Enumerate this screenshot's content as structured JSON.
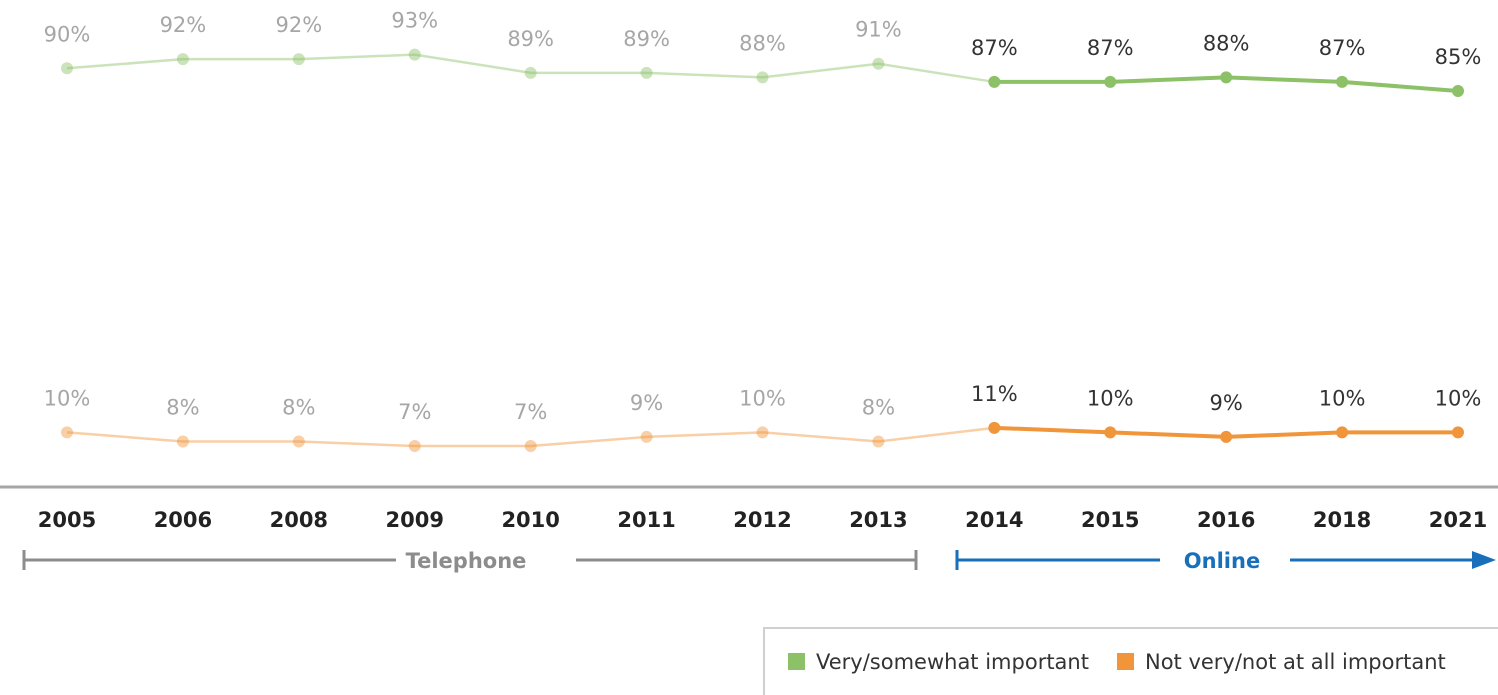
{
  "chart_data": {
    "type": "line",
    "categories": [
      "2005",
      "2006",
      "2008",
      "2009",
      "2010",
      "2011",
      "2012",
      "2013",
      "2014",
      "2015",
      "2016",
      "2018",
      "2021"
    ],
    "series": [
      {
        "name": "Very/somewhat important",
        "color": "#8cc168",
        "values": [
          90,
          92,
          92,
          93,
          89,
          89,
          88,
          91,
          87,
          87,
          88,
          87,
          85
        ],
        "value_labels": [
          "90%",
          "92%",
          "92%",
          "93%",
          "89%",
          "89%",
          "88%",
          "91%",
          "87%",
          "87%",
          "88%",
          "87%",
          "85%"
        ]
      },
      {
        "name": "Not very/not at all important",
        "color": "#f0953a",
        "values": [
          10,
          8,
          8,
          7,
          7,
          9,
          10,
          8,
          11,
          10,
          9,
          10,
          10
        ],
        "value_labels": [
          "10%",
          "8%",
          "8%",
          "7%",
          "7%",
          "9%",
          "10%",
          "8%",
          "11%",
          "10%",
          "9%",
          "10%",
          "10%"
        ]
      }
    ],
    "ylim": [
      -2,
      105
    ],
    "annotations": [
      {
        "text": "Telephone",
        "from": "2005",
        "to": "2013",
        "color": "#8c8c8c"
      },
      {
        "text": "Online",
        "from": "2014",
        "to": "2021",
        "color": "#1a6fbb"
      }
    ],
    "legend": "bottom-right"
  }
}
